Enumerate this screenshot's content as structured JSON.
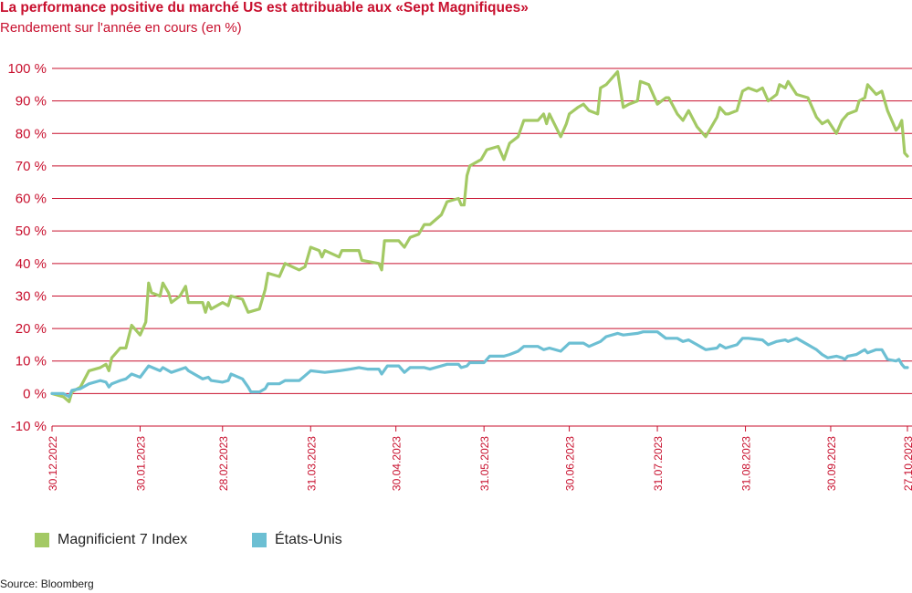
{
  "title": "La performance positive du marché US est attribuable aux «Sept Magnifiques»",
  "subtitle": "Rendement sur l'année en cours (en %)",
  "source": "Source: Bloomberg",
  "colors": {
    "accent": "#c8102e",
    "gridline": "#c8102e",
    "magnificent": "#a3c964",
    "us": "#6cbfd3"
  },
  "chart_data": {
    "type": "line",
    "ylim": [
      -10,
      100
    ],
    "yticks": [
      -10,
      0,
      10,
      20,
      30,
      40,
      50,
      60,
      70,
      80,
      90,
      100
    ],
    "ytick_labels": [
      "-10 %",
      "0 %",
      "10 %",
      "20 %",
      "30 %",
      "40 %",
      "50 %",
      "60 %",
      "70 %",
      "80 %",
      "90 %",
      "100 %"
    ],
    "xlim": [
      "2022-12-30",
      "2023-10-27"
    ],
    "xtick_labels": [
      "30.12.2022",
      "30.01.2023",
      "28.02.2023",
      "31.03.2023",
      "30.04.2023",
      "31.05.2023",
      "30.06.2023",
      "31.07.2023",
      "31.08.2023",
      "30.09.2023",
      "27.10.2023"
    ],
    "xtick_dates": [
      "2022-12-30",
      "2023-01-30",
      "2023-02-28",
      "2023-03-31",
      "2023-04-30",
      "2023-05-31",
      "2023-06-30",
      "2023-07-31",
      "2023-08-31",
      "2023-09-30",
      "2023-10-27"
    ],
    "grid": true,
    "legend_position": "bottom-left",
    "series": [
      {
        "name": "Magnificient 7 Index",
        "points": [
          [
            "2022-12-30",
            0
          ],
          [
            "2023-01-03",
            -1
          ],
          [
            "2023-01-05",
            -2.5
          ],
          [
            "2023-01-06",
            0.5
          ],
          [
            "2023-01-09",
            2
          ],
          [
            "2023-01-12",
            7
          ],
          [
            "2023-01-16",
            8
          ],
          [
            "2023-01-18",
            9
          ],
          [
            "2023-01-19",
            7
          ],
          [
            "2023-01-20",
            11
          ],
          [
            "2023-01-23",
            14
          ],
          [
            "2023-01-25",
            14
          ],
          [
            "2023-01-27",
            21
          ],
          [
            "2023-01-30",
            18
          ],
          [
            "2023-02-01",
            22
          ],
          [
            "2023-02-02",
            34
          ],
          [
            "2023-02-03",
            31
          ],
          [
            "2023-02-06",
            30
          ],
          [
            "2023-02-07",
            34
          ],
          [
            "2023-02-09",
            31
          ],
          [
            "2023-02-10",
            28
          ],
          [
            "2023-02-13",
            30
          ],
          [
            "2023-02-15",
            33
          ],
          [
            "2023-02-16",
            28
          ],
          [
            "2023-02-21",
            28
          ],
          [
            "2023-02-22",
            25
          ],
          [
            "2023-02-23",
            28
          ],
          [
            "2023-02-24",
            26
          ],
          [
            "2023-02-28",
            28
          ],
          [
            "2023-03-02",
            27
          ],
          [
            "2023-03-03",
            30
          ],
          [
            "2023-03-07",
            29
          ],
          [
            "2023-03-09",
            25
          ],
          [
            "2023-03-13",
            26
          ],
          [
            "2023-03-15",
            32
          ],
          [
            "2023-03-16",
            37
          ],
          [
            "2023-03-20",
            36
          ],
          [
            "2023-03-22",
            40
          ],
          [
            "2023-03-27",
            38
          ],
          [
            "2023-03-29",
            39
          ],
          [
            "2023-03-31",
            45
          ],
          [
            "2023-04-03",
            44
          ],
          [
            "2023-04-04",
            42
          ],
          [
            "2023-04-05",
            44
          ],
          [
            "2023-04-10",
            42
          ],
          [
            "2023-04-11",
            44
          ],
          [
            "2023-04-17",
            44
          ],
          [
            "2023-04-18",
            41
          ],
          [
            "2023-04-24",
            40
          ],
          [
            "2023-04-25",
            38
          ],
          [
            "2023-04-26",
            47
          ],
          [
            "2023-05-01",
            47
          ],
          [
            "2023-05-03",
            45
          ],
          [
            "2023-05-05",
            48
          ],
          [
            "2023-05-08",
            49
          ],
          [
            "2023-05-10",
            52
          ],
          [
            "2023-05-12",
            52
          ],
          [
            "2023-05-16",
            55
          ],
          [
            "2023-05-18",
            59
          ],
          [
            "2023-05-22",
            60
          ],
          [
            "2023-05-23",
            58
          ],
          [
            "2023-05-24",
            58
          ],
          [
            "2023-05-25",
            67
          ],
          [
            "2023-05-26",
            70
          ],
          [
            "2023-05-30",
            72
          ],
          [
            "2023-06-01",
            75
          ],
          [
            "2023-06-05",
            76
          ],
          [
            "2023-06-07",
            72
          ],
          [
            "2023-06-09",
            77
          ],
          [
            "2023-06-12",
            79
          ],
          [
            "2023-06-14",
            84
          ],
          [
            "2023-06-19",
            84
          ],
          [
            "2023-06-21",
            86
          ],
          [
            "2023-06-22",
            83
          ],
          [
            "2023-06-23",
            86
          ],
          [
            "2023-06-27",
            79
          ],
          [
            "2023-06-29",
            83
          ],
          [
            "2023-06-30",
            86
          ],
          [
            "2023-07-03",
            88
          ],
          [
            "2023-07-05",
            89
          ],
          [
            "2023-07-07",
            87
          ],
          [
            "2023-07-10",
            86
          ],
          [
            "2023-07-11",
            94
          ],
          [
            "2023-07-13",
            95
          ],
          [
            "2023-07-17",
            99
          ],
          [
            "2023-07-19",
            88
          ],
          [
            "2023-07-21",
            89
          ],
          [
            "2023-07-24",
            90
          ],
          [
            "2023-07-25",
            96
          ],
          [
            "2023-07-28",
            95
          ],
          [
            "2023-07-31",
            89
          ],
          [
            "2023-08-03",
            91
          ],
          [
            "2023-08-04",
            91
          ],
          [
            "2023-08-07",
            86
          ],
          [
            "2023-08-09",
            84
          ],
          [
            "2023-08-11",
            87
          ],
          [
            "2023-08-14",
            82
          ],
          [
            "2023-08-17",
            79
          ],
          [
            "2023-08-21",
            85
          ],
          [
            "2023-08-22",
            88
          ],
          [
            "2023-08-24",
            86
          ],
          [
            "2023-08-25",
            86
          ],
          [
            "2023-08-28",
            87
          ],
          [
            "2023-08-30",
            93
          ],
          [
            "2023-09-01",
            94
          ],
          [
            "2023-09-04",
            93
          ],
          [
            "2023-09-06",
            94
          ],
          [
            "2023-09-08",
            90
          ],
          [
            "2023-09-11",
            92
          ],
          [
            "2023-09-12",
            95
          ],
          [
            "2023-09-14",
            94
          ],
          [
            "2023-09-15",
            96
          ],
          [
            "2023-09-18",
            92
          ],
          [
            "2023-09-22",
            91
          ],
          [
            "2023-09-25",
            85
          ],
          [
            "2023-09-27",
            83
          ],
          [
            "2023-09-29",
            84
          ],
          [
            "2023-10-02",
            80
          ],
          [
            "2023-10-04",
            84
          ],
          [
            "2023-10-06",
            86
          ],
          [
            "2023-10-09",
            87
          ],
          [
            "2023-10-10",
            90
          ],
          [
            "2023-10-12",
            91
          ],
          [
            "2023-10-13",
            95
          ],
          [
            "2023-10-16",
            92
          ],
          [
            "2023-10-18",
            93
          ],
          [
            "2023-10-20",
            87
          ],
          [
            "2023-10-23",
            81
          ],
          [
            "2023-10-24",
            82
          ],
          [
            "2023-10-25",
            84
          ],
          [
            "2023-10-26",
            74
          ],
          [
            "2023-10-27",
            73
          ]
        ]
      },
      {
        "name": "États-Unis",
        "points": [
          [
            "2022-12-30",
            0
          ],
          [
            "2023-01-03",
            0
          ],
          [
            "2023-01-05",
            -1
          ],
          [
            "2023-01-06",
            1
          ],
          [
            "2023-01-09",
            1.5
          ],
          [
            "2023-01-12",
            3
          ],
          [
            "2023-01-16",
            4
          ],
          [
            "2023-01-18",
            3.5
          ],
          [
            "2023-01-19",
            2
          ],
          [
            "2023-01-20",
            3
          ],
          [
            "2023-01-23",
            4
          ],
          [
            "2023-01-25",
            4.5
          ],
          [
            "2023-01-27",
            6
          ],
          [
            "2023-01-30",
            5
          ],
          [
            "2023-02-02",
            8.5
          ],
          [
            "2023-02-06",
            7
          ],
          [
            "2023-02-07",
            8
          ],
          [
            "2023-02-10",
            6.5
          ],
          [
            "2023-02-15",
            8
          ],
          [
            "2023-02-16",
            7
          ],
          [
            "2023-02-21",
            4.5
          ],
          [
            "2023-02-23",
            5
          ],
          [
            "2023-02-24",
            4
          ],
          [
            "2023-02-28",
            3.5
          ],
          [
            "2023-03-02",
            4
          ],
          [
            "2023-03-03",
            6
          ],
          [
            "2023-03-07",
            4.5
          ],
          [
            "2023-03-09",
            2
          ],
          [
            "2023-03-10",
            0.5
          ],
          [
            "2023-03-13",
            0.5
          ],
          [
            "2023-03-15",
            1.5
          ],
          [
            "2023-03-16",
            3
          ],
          [
            "2023-03-20",
            3
          ],
          [
            "2023-03-22",
            4
          ],
          [
            "2023-03-27",
            4
          ],
          [
            "2023-03-29",
            5.5
          ],
          [
            "2023-03-31",
            7
          ],
          [
            "2023-04-05",
            6.5
          ],
          [
            "2023-04-10",
            7
          ],
          [
            "2023-04-14",
            7.5
          ],
          [
            "2023-04-17",
            8
          ],
          [
            "2023-04-20",
            7.5
          ],
          [
            "2023-04-24",
            7.5
          ],
          [
            "2023-04-25",
            6
          ],
          [
            "2023-04-27",
            8.5
          ],
          [
            "2023-05-01",
            8.5
          ],
          [
            "2023-05-03",
            6.5
          ],
          [
            "2023-05-05",
            8
          ],
          [
            "2023-05-10",
            8
          ],
          [
            "2023-05-12",
            7.5
          ],
          [
            "2023-05-16",
            8.5
          ],
          [
            "2023-05-18",
            9
          ],
          [
            "2023-05-22",
            9
          ],
          [
            "2023-05-23",
            8
          ],
          [
            "2023-05-25",
            8.5
          ],
          [
            "2023-05-26",
            9.5
          ],
          [
            "2023-05-31",
            9.5
          ],
          [
            "2023-06-02",
            11.5
          ],
          [
            "2023-06-07",
            11.5
          ],
          [
            "2023-06-09",
            12
          ],
          [
            "2023-06-12",
            13
          ],
          [
            "2023-06-14",
            14.5
          ],
          [
            "2023-06-19",
            14.5
          ],
          [
            "2023-06-21",
            13.5
          ],
          [
            "2023-06-23",
            14
          ],
          [
            "2023-06-27",
            13
          ],
          [
            "2023-06-30",
            15.5
          ],
          [
            "2023-07-05",
            15.5
          ],
          [
            "2023-07-07",
            14.5
          ],
          [
            "2023-07-11",
            16
          ],
          [
            "2023-07-13",
            17.5
          ],
          [
            "2023-07-17",
            18.5
          ],
          [
            "2023-07-19",
            18
          ],
          [
            "2023-07-24",
            18.5
          ],
          [
            "2023-07-26",
            19
          ],
          [
            "2023-07-28",
            19
          ],
          [
            "2023-07-31",
            19
          ],
          [
            "2023-08-03",
            17
          ],
          [
            "2023-08-07",
            17
          ],
          [
            "2023-08-09",
            16
          ],
          [
            "2023-08-11",
            16.5
          ],
          [
            "2023-08-14",
            15
          ],
          [
            "2023-08-17",
            13.5
          ],
          [
            "2023-08-21",
            14
          ],
          [
            "2023-08-22",
            15
          ],
          [
            "2023-08-24",
            14
          ],
          [
            "2023-08-28",
            15
          ],
          [
            "2023-08-30",
            17
          ],
          [
            "2023-09-01",
            17
          ],
          [
            "2023-09-06",
            16.5
          ],
          [
            "2023-09-08",
            15
          ],
          [
            "2023-09-11",
            16
          ],
          [
            "2023-09-14",
            16.5
          ],
          [
            "2023-09-15",
            16
          ],
          [
            "2023-09-18",
            17
          ],
          [
            "2023-09-20",
            16
          ],
          [
            "2023-09-25",
            13.5
          ],
          [
            "2023-09-27",
            12
          ],
          [
            "2023-09-29",
            11
          ],
          [
            "2023-10-02",
            11.5
          ],
          [
            "2023-10-04",
            11
          ],
          [
            "2023-10-05",
            10.5
          ],
          [
            "2023-10-06",
            11.5
          ],
          [
            "2023-10-09",
            12
          ],
          [
            "2023-10-11",
            13
          ],
          [
            "2023-10-12",
            13.5
          ],
          [
            "2023-10-13",
            12.5
          ],
          [
            "2023-10-16",
            13.5
          ],
          [
            "2023-10-18",
            13.5
          ],
          [
            "2023-10-20",
            10.5
          ],
          [
            "2023-10-23",
            10
          ],
          [
            "2023-10-24",
            10.5
          ],
          [
            "2023-10-25",
            9
          ],
          [
            "2023-10-26",
            8
          ],
          [
            "2023-10-27",
            8
          ]
        ]
      }
    ]
  }
}
